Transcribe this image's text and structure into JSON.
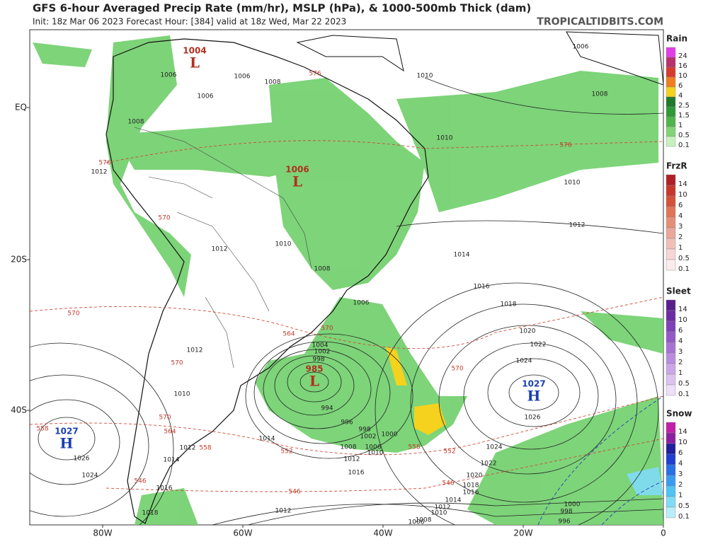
{
  "header": {
    "title": "GFS 6-hour Averaged Precip Rate (mm/hr), MSLP (hPa), & 1000-500mb Thick (dam)",
    "subtitle": "Init: 18z Mar 06 2023   Forecast Hour: [384]   valid at 18z Wed, Mar 22 2023",
    "site": "TROPICALTIDBITS.COM"
  },
  "map": {
    "lat_labels": [
      "EQ",
      "20S",
      "40S"
    ],
    "lon_labels": [
      "80W",
      "60W",
      "40W",
      "20W",
      "0"
    ],
    "centers": [
      {
        "value": "1004",
        "symbol": "L"
      },
      {
        "value": "1006",
        "symbol": "L"
      },
      {
        "value": "985",
        "symbol": "L"
      },
      {
        "value": "1027",
        "symbol": "H"
      },
      {
        "value": "1027",
        "symbol": "H"
      }
    ],
    "isobar_labels": [
      "1010",
      "1008",
      "1010",
      "1012",
      "1014",
      "1016",
      "1018",
      "1020",
      "1022",
      "1024",
      "1026",
      "1024",
      "1022",
      "1020",
      "1018",
      "1016",
      "1014",
      "1012",
      "1010",
      "1008",
      "1006",
      "1000",
      "998",
      "996",
      "1006",
      "1010",
      "1012",
      "1006",
      "1008",
      "1010",
      "1012",
      "1008",
      "1006",
      "1004",
      "1002",
      "998",
      "994",
      "996",
      "998",
      "1000",
      "1002",
      "1006",
      "1008",
      "1010",
      "1012",
      "1014",
      "1016",
      "1012",
      "1026",
      "1024",
      "1012",
      "1014",
      "1016",
      "1018",
      "1010",
      "1012",
      "1006",
      "1008",
      "1006",
      "1010"
    ],
    "thickness_labels": [
      "576",
      "576",
      "576",
      "570",
      "570",
      "564",
      "570",
      "570",
      "570",
      "564",
      "558",
      "552",
      "558",
      "570",
      "552",
      "546",
      "546",
      "546",
      "558"
    ]
  },
  "legend": [
    {
      "title": "Rain",
      "labels": [
        "24",
        "16",
        "10",
        "6",
        "4",
        "2.5",
        "1.5",
        "1",
        "0.5",
        "0.1"
      ],
      "colors": [
        "#e23ee6",
        "#b8306e",
        "#d93a2f",
        "#ef7d22",
        "#f4d21d",
        "#1f7a2a",
        "#2f9a36",
        "#4db54a",
        "#7fd473",
        "#c6f1bd"
      ]
    },
    {
      "title": "FrzR",
      "labels": [
        "14",
        "10",
        "6",
        "4",
        "3",
        "2",
        "1",
        "0.5",
        "0.1"
      ],
      "colors": [
        "#b01e28",
        "#c8372c",
        "#d6513a",
        "#e07458",
        "#e68f78",
        "#eba79a",
        "#f0bfb8",
        "#f5d6d4",
        "#fbecec"
      ]
    },
    {
      "title": "Sleet",
      "labels": [
        "14",
        "10",
        "6",
        "4",
        "3",
        "2",
        "1",
        "0.5",
        "0.1"
      ],
      "colors": [
        "#5a1e8c",
        "#6d2ba3",
        "#8040b8",
        "#9458c8",
        "#a772d4",
        "#ba8cdf",
        "#cca7e8",
        "#dcc2f0",
        "#eedff8"
      ]
    },
    {
      "title": "Snow",
      "labels": [
        "14",
        "10",
        "6",
        "4",
        "3",
        "2",
        "1",
        "0.5",
        "0.1"
      ],
      "colors": [
        "#c21fa8",
        "#8c1fa0",
        "#20209c",
        "#1f3fd0",
        "#2a6fe4",
        "#3a9cf0",
        "#4ec4f4",
        "#7fdcf6",
        "#b8eefa"
      ]
    }
  ]
}
